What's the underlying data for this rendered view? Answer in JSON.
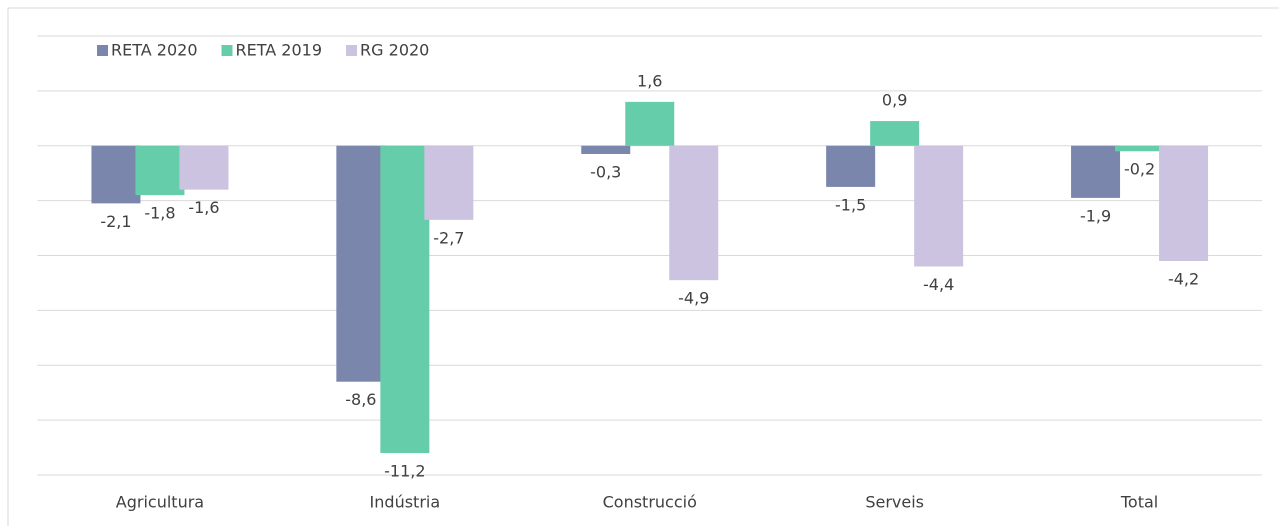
{
  "chart_data": {
    "type": "bar",
    "categories": [
      "Agricultura",
      "Indústria",
      "Construcció",
      "Serveis",
      "Total"
    ],
    "series": [
      {
        "name": "RETA 2020",
        "color": "#7b86ad",
        "values": [
          -2.1,
          -8.6,
          -0.3,
          -1.5,
          -1.9
        ],
        "value_labels": [
          "-2,1",
          "-8,6",
          "-0,3",
          "-1,5",
          "-1,9"
        ]
      },
      {
        "name": "RETA 2019",
        "color": "#66cdaa",
        "values": [
          -1.8,
          -11.2,
          1.6,
          0.9,
          -0.2
        ],
        "value_labels": [
          "-1,8",
          "-11,2",
          "1,6",
          "0,9",
          "-0,2"
        ]
      },
      {
        "name": "RG 2020",
        "color": "#cbc3e0",
        "values": [
          -1.6,
          -2.7,
          -4.9,
          -4.4,
          -4.2
        ],
        "value_labels": [
          "-1,6",
          "-2,7",
          "-4,9",
          "-4,4",
          "-4,2"
        ]
      }
    ],
    "ylim": [
      -12,
      4
    ],
    "yticks": [
      -12,
      -10,
      -8,
      -6,
      -4,
      -2,
      0,
      2,
      4
    ],
    "grid": true,
    "legend": "top-left"
  }
}
